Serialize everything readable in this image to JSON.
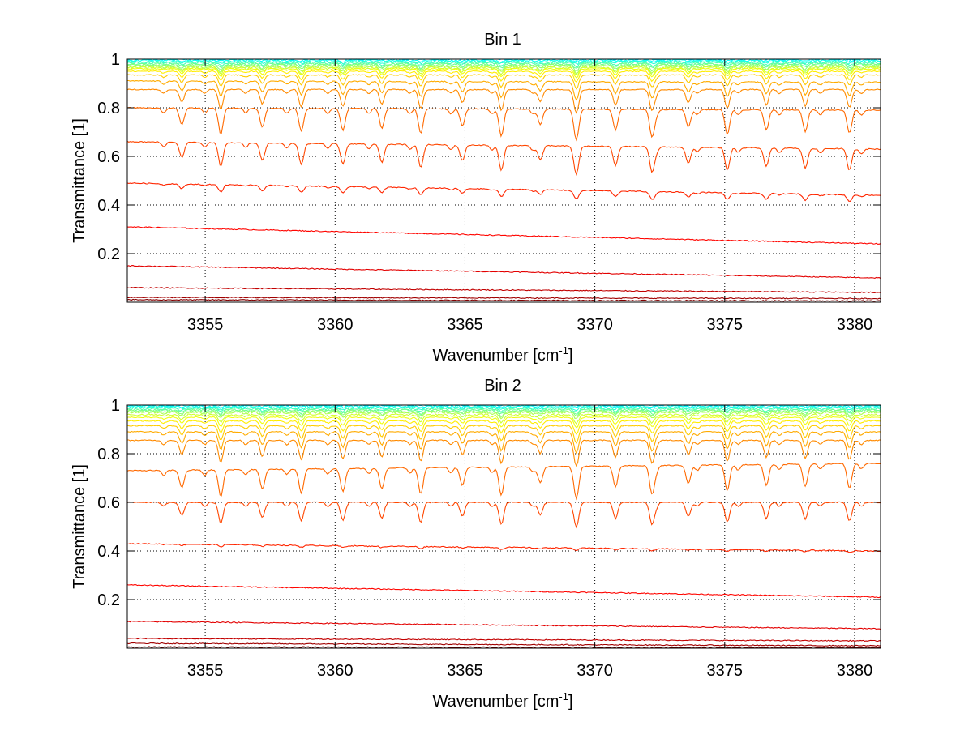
{
  "chart_data": [
    {
      "type": "line",
      "title": "Bin 1",
      "xlabel": "Wavenumber [cm",
      "xlabel_sup": "-1",
      "xlabel_end": "]",
      "ylabel": "Transmittance [1]",
      "xlim": [
        3352,
        3381
      ],
      "ylim": [
        0,
        1
      ],
      "grid": true,
      "xticks": [
        "3355",
        "3360",
        "3365",
        "3370",
        "3375",
        "3380"
      ],
      "yticks": [
        "0.2",
        "0.4",
        "0.6",
        "0.8",
        "1"
      ],
      "series_baselines": [
        1.0,
        0.995,
        0.99,
        0.985,
        0.98,
        0.975,
        0.97,
        0.965,
        0.96,
        0.95,
        0.935,
        0.91,
        0.875,
        0.8,
        0.64,
        0.46,
        0.28,
        0.14,
        0.05,
        0.02,
        0.01
      ],
      "series_left_values": [
        1.0,
        0.995,
        0.99,
        0.985,
        0.98,
        0.975,
        0.97,
        0.965,
        0.96,
        0.95,
        0.935,
        0.91,
        0.875,
        0.8,
        0.66,
        0.49,
        0.31,
        0.15,
        0.06,
        0.02,
        0.01
      ],
      "series_right_values": [
        1.0,
        0.995,
        0.99,
        0.985,
        0.98,
        0.975,
        0.97,
        0.965,
        0.96,
        0.95,
        0.935,
        0.905,
        0.875,
        0.79,
        0.63,
        0.44,
        0.24,
        0.1,
        0.04,
        0.015,
        0.005
      ],
      "absorption_lines": [
        3354.1,
        3355.6,
        3357.2,
        3358.7,
        3360.3,
        3361.8,
        3363.3,
        3364.9,
        3366.4,
        3367.9,
        3369.3,
        3370.8,
        3372.2,
        3373.6,
        3375.1,
        3376.6,
        3378.1,
        3379.8
      ]
    },
    {
      "type": "line",
      "title": "Bin 2",
      "xlabel": "Wavenumber [cm",
      "xlabel_sup": "-1",
      "xlabel_end": "]",
      "ylabel": "Transmittance [1]",
      "xlim": [
        3352,
        3381
      ],
      "ylim": [
        0,
        1
      ],
      "grid": true,
      "xticks": [
        "3355",
        "3360",
        "3365",
        "3370",
        "3375",
        "3380"
      ],
      "yticks": [
        "0.2",
        "0.4",
        "0.6",
        "0.8",
        "1"
      ],
      "series_baselines": [
        1.0,
        0.995,
        0.99,
        0.985,
        0.98,
        0.975,
        0.97,
        0.96,
        0.95,
        0.935,
        0.915,
        0.89,
        0.855,
        0.77,
        0.6,
        0.4,
        0.22,
        0.09,
        0.035,
        0.015,
        0.005
      ],
      "series_left_values": [
        1.0,
        0.995,
        0.99,
        0.985,
        0.98,
        0.975,
        0.97,
        0.96,
        0.95,
        0.935,
        0.915,
        0.89,
        0.855,
        0.73,
        0.6,
        0.43,
        0.26,
        0.11,
        0.04,
        0.02,
        0.005
      ],
      "series_right_values": [
        1.0,
        0.995,
        0.99,
        0.985,
        0.98,
        0.975,
        0.97,
        0.96,
        0.95,
        0.935,
        0.915,
        0.89,
        0.855,
        0.76,
        0.6,
        0.4,
        0.21,
        0.08,
        0.03,
        0.01,
        0.003
      ],
      "absorption_lines": [
        3354.1,
        3355.6,
        3357.2,
        3358.7,
        3360.3,
        3361.8,
        3363.3,
        3364.9,
        3366.4,
        3367.9,
        3369.3,
        3370.8,
        3372.2,
        3373.6,
        3375.1,
        3376.6,
        3378.1,
        3379.8
      ]
    }
  ]
}
